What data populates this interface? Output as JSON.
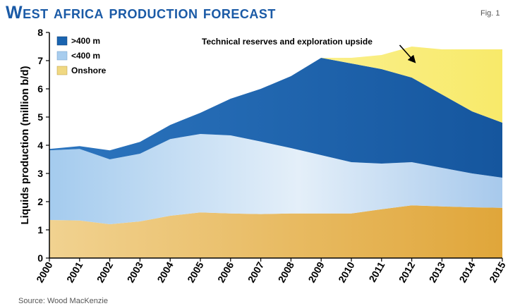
{
  "chart_data": {
    "type": "area",
    "stacked": true,
    "title": "West africa production forecast",
    "fig_label": "Fig. 1",
    "ylabel": "Liquids production (million b/d)",
    "xlabel": "",
    "ylim": [
      0,
      8
    ],
    "yticks": [
      0,
      1,
      2,
      3,
      4,
      5,
      6,
      7,
      8
    ],
    "x": [
      "2000",
      "2001",
      "2002",
      "2003",
      "2004",
      "2005",
      "2006",
      "2007",
      "2008",
      "2009",
      "2010",
      "2011",
      "2012",
      "2013",
      "2014",
      "2015"
    ],
    "series": [
      {
        "name": "Onshore",
        "color": "#e6b44c",
        "values": [
          1.35,
          1.33,
          1.2,
          1.3,
          1.5,
          1.62,
          1.58,
          1.56,
          1.58,
          1.58,
          1.58,
          1.73,
          1.87,
          1.83,
          1.8,
          1.78
        ]
      },
      {
        "name": "<400 m",
        "color": "#a8cdee",
        "values": [
          2.47,
          2.54,
          2.3,
          2.4,
          2.72,
          2.78,
          2.77,
          2.57,
          2.32,
          2.07,
          1.82,
          1.62,
          1.53,
          1.37,
          1.2,
          1.07
        ]
      },
      {
        "name": ">400 m",
        "color": "#1a64b0",
        "values": [
          0.05,
          0.1,
          0.32,
          0.42,
          0.5,
          0.75,
          1.3,
          1.87,
          2.55,
          3.45,
          3.5,
          3.35,
          3.0,
          2.6,
          2.2,
          1.95
        ]
      },
      {
        "name": "Technical reserves and exploration upside",
        "color": "#faf190",
        "values": [
          0,
          0,
          0,
          0,
          0,
          0,
          0,
          0,
          0,
          0,
          0.2,
          0.5,
          1.1,
          1.6,
          2.2,
          2.6
        ]
      }
    ],
    "legend": [
      {
        "label": ">400 m",
        "color": "#1a64b0"
      },
      {
        "label": "<400 m",
        "color": "#a8cdee"
      },
      {
        "label": "Onshore",
        "color": "#f0d882"
      }
    ],
    "legend_position": "top-left",
    "annotation": {
      "text": "Technical reserves and exploration upside",
      "arrow_from": {
        "x": 2011.6,
        "y": 7.55
      },
      "arrow_to": {
        "x": 2012.1,
        "y": 6.95
      }
    },
    "source": "Source: Wood MacKenzie"
  }
}
